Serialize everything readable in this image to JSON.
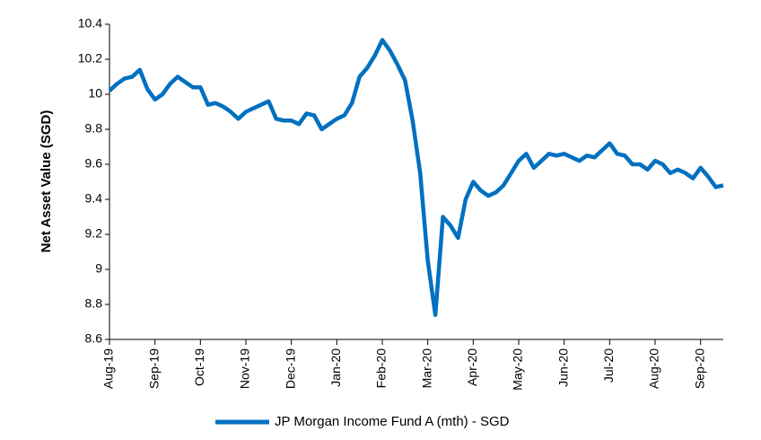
{
  "chart_data": {
    "type": "line",
    "y_label": "Net Asset Value (SGD)",
    "categories": [
      "Aug-19",
      null,
      null,
      null,
      null,
      null,
      "Sep-19",
      null,
      null,
      null,
      null,
      null,
      "Oct-19",
      null,
      null,
      null,
      null,
      null,
      "Nov-19",
      null,
      null,
      null,
      null,
      null,
      "Dec-19",
      null,
      null,
      null,
      null,
      null,
      "Jan-20",
      null,
      null,
      null,
      null,
      null,
      "Feb-20",
      null,
      null,
      null,
      null,
      null,
      "Mar-20",
      null,
      null,
      null,
      null,
      null,
      "Apr-20",
      null,
      null,
      null,
      null,
      null,
      "May-20",
      null,
      null,
      null,
      null,
      null,
      "Jun-20",
      null,
      null,
      null,
      null,
      null,
      "Jul-20",
      null,
      null,
      null,
      null,
      null,
      "Aug-20",
      null,
      null,
      null,
      null,
      null,
      "Sep-20",
      null,
      null,
      null
    ],
    "series": [
      {
        "name": "JP Morgan Income Fund A (mth) - SGD",
        "color": "#0070c0",
        "values": [
          10.02,
          10.06,
          10.09,
          10.1,
          10.14,
          10.03,
          9.97,
          10.0,
          10.06,
          10.1,
          10.07,
          10.04,
          10.04,
          9.94,
          9.95,
          9.93,
          9.9,
          9.86,
          9.9,
          9.92,
          9.94,
          9.96,
          9.86,
          9.85,
          9.85,
          9.83,
          9.89,
          9.88,
          9.8,
          9.83,
          9.86,
          9.88,
          9.95,
          10.1,
          10.15,
          10.22,
          10.31,
          10.25,
          10.17,
          10.08,
          9.85,
          9.55,
          9.05,
          8.74,
          9.3,
          9.25,
          9.18,
          9.4,
          9.5,
          9.45,
          9.42,
          9.44,
          9.48,
          9.55,
          9.62,
          9.66,
          9.58,
          9.62,
          9.66,
          9.65,
          9.66,
          9.64,
          9.62,
          9.65,
          9.64,
          9.68,
          9.72,
          9.66,
          9.65,
          9.6,
          9.6,
          9.57,
          9.62,
          9.6,
          9.55,
          9.57,
          9.55,
          9.52,
          9.58,
          9.53,
          9.47,
          9.48
        ]
      }
    ],
    "ylim": [
      8.6,
      10.4
    ],
    "yticks": [
      8.6,
      8.8,
      9,
      9.2,
      9.4,
      9.6,
      9.8,
      10,
      10.2,
      10.4
    ],
    "grid": false,
    "legend": "bottom"
  }
}
